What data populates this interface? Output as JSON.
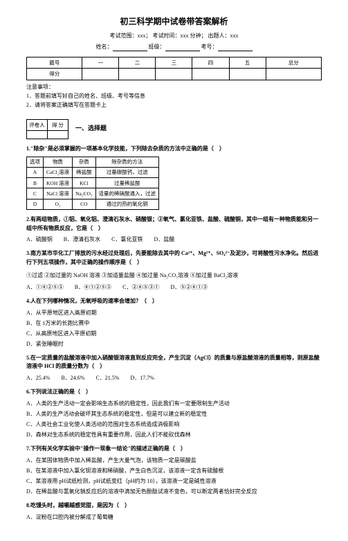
{
  "header": {
    "title": "初三科学期中试卷带答案解析",
    "exam_scope_label": "考试范围：",
    "exam_scope": "xxx；",
    "exam_time_label": "考试时间：",
    "exam_time": "xxx 分钟；",
    "author_label": "出题人：",
    "author": "xxx",
    "name_label": "姓名：",
    "class_label": "班级：",
    "id_label": "考号：",
    "score_table": {
      "cols": [
        "题号",
        "一",
        "二",
        "三",
        "四",
        "五",
        "总分"
      ],
      "row_label": "得分"
    },
    "notice_label": "注意事项：",
    "notices": [
      "1．答题前填写好自己的姓名、班级、考号等信息",
      "2．请将答案正确填写在答题卡上"
    ]
  },
  "section1": {
    "marker_table": {
      "cols": [
        "评卷人",
        "得 分"
      ]
    },
    "label": "一、选择题"
  },
  "q1": {
    "text": "1.\"除杂\"是必须掌握的一项基本化学技能，下列除去杂质的方法中正确的是（　）",
    "table": {
      "header": [
        "选项",
        "物质",
        "杂质",
        "除杂质的方法"
      ],
      "rows": [
        [
          "A",
          "CaCl₂溶液",
          "稀盐酸",
          "过量碳酸钙，过滤"
        ],
        [
          "B",
          "KOH 溶液",
          "KCl",
          "过量稀盐酸"
        ],
        [
          "C",
          "NaCl 溶液",
          "Na₂CO₃",
          "适量的稀硝酸通入，过滤"
        ],
        [
          "D",
          "O₂",
          "CO",
          "通过灼热的氧化铜"
        ]
      ]
    }
  },
  "q2": {
    "text": "2.有两组物质，①铝、氧化铝、澄清石灰水、硝酸银；②氧气、氯化亚铁、盐酸、硫酸铜，其中一组有一种物质能和另一组中所有物质反应，它是（　）",
    "opts": [
      "A．硫酸铜",
      "B．澄清石灰水",
      "C．氯化亚铁",
      "D．盐酸"
    ]
  },
  "q3": {
    "text": "3.南方某市华化工厂排放的污水经过处理后，先要能除去其中的 Ca²⁺、Mg²⁺、SO₄²⁻及泥沙，可将酸性污水净化。然后进行下列五项操作，其中正确的操作顺序是（　）",
    "line2": "①过滤  ②加过量的 NaOH 溶液 ③加适量盐酸  ④加过量 Na₂CO₃溶液  ⑤加过量 BaCl₂溶液",
    "opts": [
      "A．①④②⑤③",
      "B．④①②⑤③",
      "C．②④⑤③①",
      "D．⑤②④①③"
    ]
  },
  "q4": {
    "text": "4.人在下列哪种情况，无氧呼吸的速率会增加？（　）",
    "opts": [
      "A．从平原地区进入高原初期",
      "B．在 1万米的长跑比赛中",
      "C．从高原地区进入平原初期",
      "D．紧张睡眠时"
    ]
  },
  "q5": {
    "text": "5.在一定质量的盐酸溶液中加入硝酸银溶液直到反应完全，产生沉淀（AgCl）的质量与原盐酸溶液的质量相等，则原盐酸溶液中 HCl 的质量分数为（　）",
    "opts": [
      "A．25.4%",
      "B．24.6%",
      "C．21.5%",
      "D．17.7%"
    ]
  },
  "q6": {
    "text": "6.下列说法正确的是（　）",
    "opts": [
      "A．人类的生产活动一定会影响生态系统的稳定性，因此我们有一定要限制生产活动",
      "B．人类的生产活动会破坏其生态系统的稳定性，但是可以建立新的稳定性",
      "C．人类社会工业化使人类活动的范围对生态系统造成消极影响",
      "D．森林对生态系统的稳定性具有重要作用，因此人们不能砍伐森林"
    ]
  },
  "q7": {
    "text": "7.下列有关化学实验中\"操作一现象一结论\"的描述正确的是（　）",
    "opts": [
      "A．在某固体物质中加入稀盐酸，产生大量气泡，该物质一定是碳酸盐",
      "B．在某溶液中加入氯化钡溶液和稀硝酸，产生白色沉淀，该溶液一定含有硫酸根",
      "C．某溶液用 pH试纸检测，pH试纸变红（pH约为 10），该溶液一定是碱性溶液",
      "D．在稀盐酸与氢氧化钠反应后的溶液中滴加无色酚酞试液不变色，可以断定两者恰好完全反应"
    ]
  },
  "q8": {
    "text": "8.吃馒头时，越嚼越感觉甜，是因为（　）",
    "opts_first": "A．淀粉在口腔内被分解成了葡萄糖"
  }
}
